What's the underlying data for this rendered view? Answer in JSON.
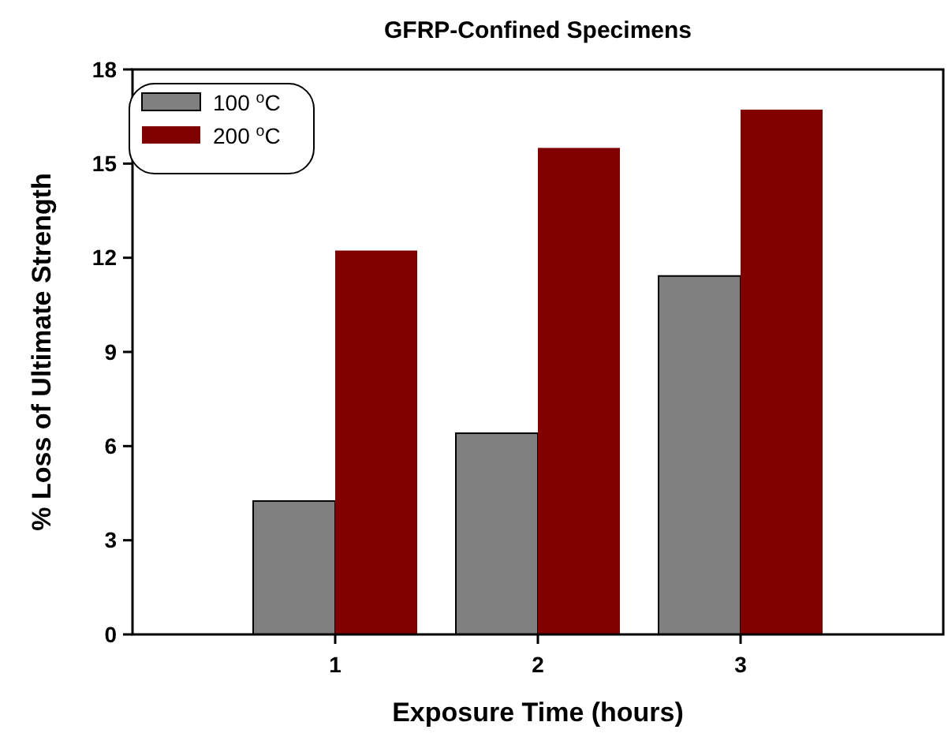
{
  "chart_data": {
    "type": "bar",
    "title": "GFRP-Confined Specimens",
    "xlabel": "Exposure Time (hours)",
    "ylabel": "% Loss of Ultimate Strength",
    "categories": [
      "1",
      "2",
      "3"
    ],
    "series": [
      {
        "name": "100 $^{o}$C",
        "color": "#808080",
        "values": [
          4.25,
          6.41,
          11.42
        ]
      },
      {
        "name": "200 $^{o}$C",
        "color": "#800000",
        "values": [
          12.23,
          15.5,
          16.72
        ]
      }
    ],
    "ylim": [
      0,
      18
    ],
    "yticks": [
      0,
      3,
      6,
      9,
      12,
      15,
      18
    ],
    "grid": false,
    "legend": "top left"
  }
}
